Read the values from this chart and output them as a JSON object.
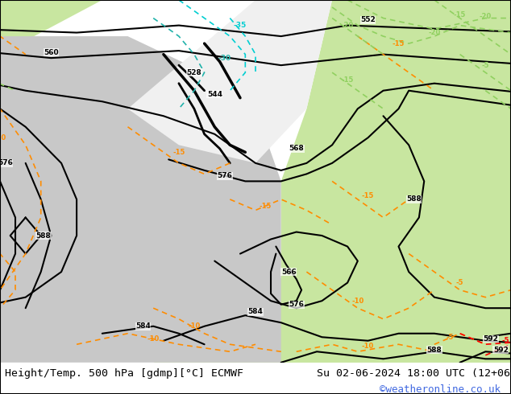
{
  "title_left": "Height/Temp. 500 hPa [gdmp][°C] ECMWF",
  "title_right": "Su 02-06-2024 18:00 UTC (12+06)",
  "watermark": "©weatheronline.co.uk",
  "bg_color_land_warm": "#c8e6a0",
  "bg_color_land_cold": "#c8c8c8",
  "bg_color_very_cold": "#f0f0f0",
  "watermark_color": "#4169e1",
  "fig_width": 6.34,
  "fig_height": 4.9,
  "dpi": 100
}
